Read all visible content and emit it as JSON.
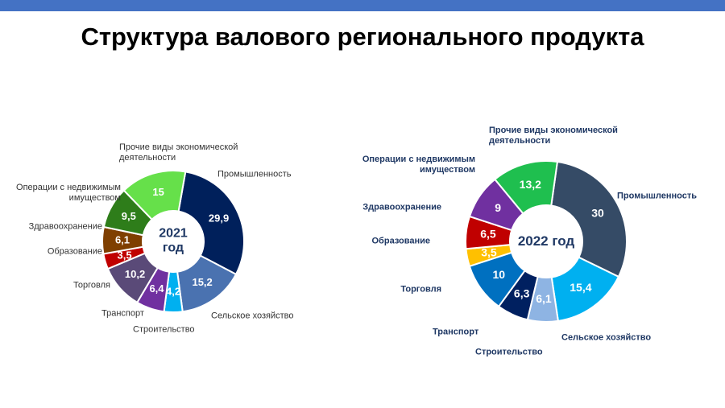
{
  "title": "Структура валового регионального продукта",
  "chart_data": [
    {
      "type": "donut",
      "center_label": "2021 год",
      "categories": [
        "Промышленность",
        "Сельское хозяйство",
        "Строительство",
        "Транспорт",
        "Торговля",
        "Образование",
        "Здравоохранение",
        "Операции с недвижимым имуществом",
        "Прочие виды экономической деятельности"
      ],
      "values": [
        29.9,
        15.2,
        4.2,
        6.4,
        10.2,
        3.5,
        6.1,
        9.5,
        15
      ],
      "value_labels": [
        "29,9",
        "15,2",
        "4,2",
        "6,4",
        "10,2",
        "3,5",
        "6,1",
        "9,5",
        "15"
      ],
      "colors": [
        "#00205b",
        "#4a72b0",
        "#00b0f0",
        "#7030a0",
        "#5a4a78",
        "#c00000",
        "#7f3f00",
        "#2e7d1a",
        "#66e04a"
      ]
    },
    {
      "type": "donut",
      "center_label": "2022 год",
      "categories": [
        "Промышленность",
        "Сельское хозяйство",
        "Строительство",
        "Транспорт",
        "Торговля",
        "Образование",
        "Здравоохранение",
        "Операции с недвижимым имуществом",
        "Прочие виды экономической деятельности"
      ],
      "values": [
        30,
        15.4,
        6.1,
        6.3,
        10,
        3.5,
        6.5,
        9,
        13.2
      ],
      "value_labels": [
        "30",
        "15,4",
        "6,1",
        "6,3",
        "10",
        "3,5",
        "6,5",
        "9",
        "13,2"
      ],
      "colors": [
        "#354b66",
        "#00b0f0",
        "#8eb4e3",
        "#002060",
        "#0070c0",
        "#ffc000",
        "#c00000",
        "#7030a0",
        "#1fbf4f"
      ]
    }
  ]
}
